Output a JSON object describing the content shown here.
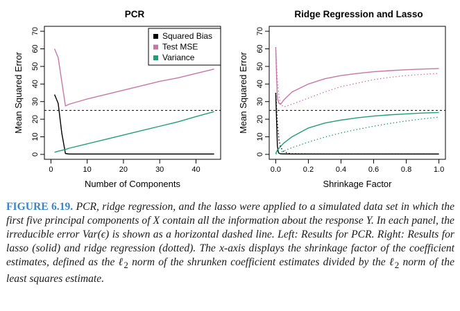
{
  "chart_data": [
    {
      "type": "line",
      "title": "PCR",
      "xlabel": "Number of Components",
      "ylabel": "Mean Squared Error",
      "xlim": [
        0,
        45
      ],
      "ylim": [
        0,
        70
      ],
      "xticks": [
        0,
        10,
        20,
        30,
        40
      ],
      "yticks": [
        0,
        10,
        20,
        30,
        40,
        50,
        60,
        70
      ],
      "legend": {
        "position": "top-right",
        "entries": [
          {
            "label": "Squared Bias",
            "color": "#000000"
          },
          {
            "label": "Test MSE",
            "color": "#c875a6"
          },
          {
            "label": "Variance",
            "color": "#1f9e78"
          }
        ]
      },
      "hline": {
        "y": 25,
        "style": "dashed",
        "label": "irreducible error"
      },
      "series": [
        {
          "name": "Squared Bias",
          "color": "#000000",
          "style": "solid",
          "x": [
            1,
            2,
            3,
            4,
            5,
            10,
            20,
            30,
            40,
            45
          ],
          "y": [
            34,
            29,
            12,
            0.5,
            0.2,
            0.2,
            0.2,
            0.2,
            0.2,
            0.2
          ]
        },
        {
          "name": "Test MSE",
          "color": "#c875a6",
          "style": "solid",
          "x": [
            1,
            2,
            4,
            5,
            10,
            15,
            20,
            25,
            30,
            35,
            40,
            45
          ],
          "y": [
            60,
            55,
            27.5,
            28.5,
            31.5,
            34,
            36.5,
            39,
            41.5,
            43.5,
            46,
            48.5
          ]
        },
        {
          "name": "Variance",
          "color": "#1f9e78",
          "style": "solid",
          "x": [
            1,
            2,
            4,
            5,
            10,
            15,
            20,
            25,
            30,
            35,
            40,
            45
          ],
          "y": [
            1.2,
            1.8,
            2.8,
            3.5,
            6,
            8.5,
            11,
            13.5,
            16,
            18.5,
            21.5,
            24.3
          ]
        }
      ]
    },
    {
      "type": "line",
      "title": "Ridge Regression and Lasso",
      "xlabel": "Shrinkage Factor",
      "ylabel": "Mean Squared Error",
      "xlim": [
        0,
        1
      ],
      "ylim": [
        0,
        70
      ],
      "xticks": [
        0.0,
        0.2,
        0.4,
        0.6,
        0.8,
        1.0
      ],
      "xtick_labels": [
        "0.0",
        "0.2",
        "0.4",
        "0.6",
        "0.8",
        "1.0"
      ],
      "yticks": [
        0,
        10,
        20,
        30,
        40,
        50,
        60,
        70
      ],
      "hline": {
        "y": 25,
        "style": "dashed",
        "label": "irreducible error"
      },
      "series": [
        {
          "name": "Lasso Squared Bias",
          "color": "#000000",
          "style": "solid",
          "x": [
            0.0,
            0.005,
            0.01,
            0.015,
            0.02,
            0.03,
            0.05,
            0.1,
            0.3,
            0.6,
            1.0
          ],
          "y": [
            35,
            20,
            5,
            1.5,
            0.6,
            0.3,
            0.25,
            0.2,
            0.2,
            0.2,
            0.2
          ]
        },
        {
          "name": "Lasso Test MSE",
          "color": "#c875a6",
          "style": "solid",
          "x": [
            0.0,
            0.005,
            0.01,
            0.02,
            0.03,
            0.05,
            0.1,
            0.2,
            0.3,
            0.4,
            0.5,
            0.6,
            0.7,
            0.8,
            0.9,
            1.0
          ],
          "y": [
            61,
            45,
            32,
            29,
            28.5,
            31,
            35.5,
            40,
            43,
            44.8,
            46,
            47,
            47.6,
            48.1,
            48.5,
            48.8
          ]
        },
        {
          "name": "Lasso Variance",
          "color": "#1f9e78",
          "style": "solid",
          "x": [
            0.0,
            0.005,
            0.01,
            0.02,
            0.03,
            0.05,
            0.1,
            0.2,
            0.3,
            0.4,
            0.5,
            0.6,
            0.7,
            0.8,
            0.9,
            1.0
          ],
          "y": [
            0.5,
            1.5,
            2.5,
            3.5,
            4.5,
            6.5,
            10,
            15,
            17.8,
            19.5,
            20.8,
            21.8,
            22.5,
            23,
            23.5,
            23.8
          ]
        },
        {
          "name": "Ridge Squared Bias",
          "color": "#000000",
          "style": "dotted",
          "x": [
            0.0,
            0.005,
            0.01,
            0.02,
            0.03,
            0.05,
            0.08,
            0.1,
            0.3,
            0.6,
            1.0
          ],
          "y": [
            35,
            27,
            18,
            8,
            4,
            1.5,
            0.6,
            0.4,
            0.2,
            0.2,
            0.2
          ]
        },
        {
          "name": "Ridge Test MSE",
          "color": "#c875a6",
          "style": "dotted",
          "x": [
            0.0,
            0.005,
            0.01,
            0.02,
            0.03,
            0.05,
            0.1,
            0.2,
            0.3,
            0.4,
            0.5,
            0.6,
            0.7,
            0.8,
            0.9,
            1.0
          ],
          "y": [
            61,
            52,
            42,
            33,
            28.5,
            27,
            28.5,
            32,
            35.5,
            38.5,
            40.5,
            42.5,
            43.8,
            44.8,
            45.5,
            46
          ]
        },
        {
          "name": "Ridge Variance",
          "color": "#1f9e78",
          "style": "dotted",
          "x": [
            0.0,
            0.01,
            0.02,
            0.03,
            0.05,
            0.1,
            0.2,
            0.3,
            0.4,
            0.5,
            0.6,
            0.7,
            0.8,
            0.9,
            1.0
          ],
          "y": [
            0.3,
            0.5,
            0.8,
            1.2,
            2,
            3.8,
            7,
            9.8,
            12.2,
            14.2,
            16,
            17.6,
            19,
            20.2,
            21.2
          ]
        }
      ]
    }
  ],
  "caption": {
    "label": "FIGURE 6.19.",
    "p1": " PCR, ridge regression, and the lasso were applied to a simulated data set in which the first five principal components of ",
    "X": "X",
    "p2": " contain all the information about the response ",
    "Y": "Y",
    "p3": ". In each panel, the irreducible error ",
    "var": "Var(ϵ)",
    "p4": " is shown as a horizontal dashed line. Left: Results for PCR. Right: Results for lasso (solid) and ridge regression (dotted). The ",
    "xaxis": "x",
    "p5": "-axis displays the shrinkage factor of the coefficient estimates, defined as the ",
    "l2a": "ℓ",
    "sub2a": "2",
    "p6": " norm of the shrunken coefficient estimates divided by the ",
    "l2b": "ℓ",
    "sub2b": "2",
    "p7": " norm of the least squares estimate."
  }
}
